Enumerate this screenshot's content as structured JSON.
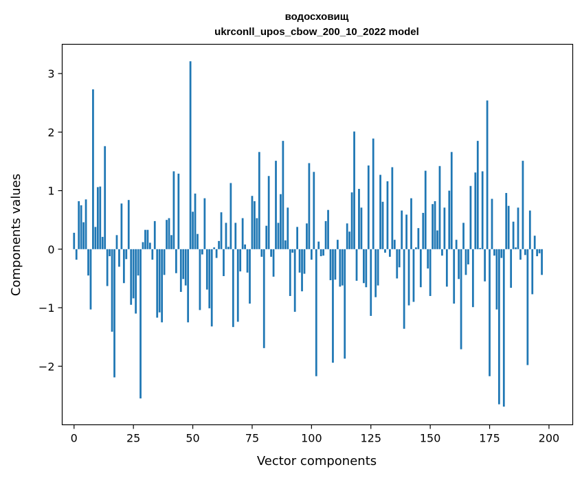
{
  "chart_data": {
    "type": "bar",
    "title_line1": "водосховищ",
    "title_line2": "ukrconll_upos_cbow_200_10_2022 model",
    "xlabel": "Vector components",
    "ylabel": "Components values",
    "xlim": [
      -5,
      210
    ],
    "ylim": [
      -3.0,
      3.5
    ],
    "xticks": [
      0,
      25,
      50,
      75,
      100,
      125,
      150,
      175,
      200
    ],
    "yticks": [
      -2,
      -1,
      0,
      1,
      2,
      3
    ],
    "bar_color": "#1f77b4",
    "values": [
      0.28,
      -0.18,
      0.82,
      0.75,
      0.46,
      0.85,
      -0.45,
      -1.03,
      2.73,
      0.38,
      1.06,
      1.07,
      0.21,
      1.76,
      -0.63,
      -0.12,
      -1.41,
      -2.19,
      0.24,
      -0.3,
      0.78,
      -0.58,
      -0.17,
      0.84,
      -0.95,
      -0.84,
      -1.1,
      -0.45,
      -2.55,
      0.12,
      0.33,
      0.33,
      0.11,
      -0.18,
      0.48,
      -1.17,
      -1.08,
      -1.25,
      -0.44,
      0.5,
      0.53,
      0.24,
      1.33,
      -0.41,
      1.29,
      -0.73,
      -0.51,
      -0.62,
      -1.25,
      3.21,
      0.64,
      0.95,
      0.26,
      -1.04,
      -0.09,
      0.87,
      -0.69,
      -1.01,
      -1.32,
      0.03,
      -0.15,
      0.14,
      0.63,
      -0.46,
      0.45,
      0.04,
      1.13,
      -1.33,
      0.45,
      -1.24,
      -0.38,
      0.53,
      0.08,
      -0.4,
      -0.93,
      0.91,
      0.82,
      0.53,
      1.66,
      -0.13,
      -1.69,
      0.4,
      1.25,
      -0.13,
      -0.47,
      1.51,
      0.45,
      0.94,
      1.85,
      0.15,
      0.71,
      -0.8,
      -0.06,
      -1.07,
      0.38,
      -0.4,
      -0.72,
      -0.42,
      0.44,
      1.47,
      -0.18,
      1.32,
      -2.17,
      0.13,
      -0.12,
      -0.11,
      0.48,
      0.67,
      -0.53,
      -1.94,
      -0.52,
      0.16,
      -0.64,
      -0.62,
      -1.87,
      0.44,
      0.3,
      0.97,
      2.01,
      -0.54,
      1.03,
      0.71,
      -0.58,
      -0.65,
      1.43,
      -1.14,
      1.89,
      -0.82,
      -0.62,
      1.27,
      0.81,
      -0.06,
      1.16,
      -0.13,
      1.4,
      0.16,
      -0.5,
      -0.31,
      0.66,
      -1.36,
      0.59,
      -0.96,
      0.87,
      -0.9,
      0.03,
      0.36,
      -0.65,
      0.62,
      1.34,
      -0.33,
      -0.8,
      0.77,
      0.82,
      0.32,
      1.42,
      -0.11,
      0.71,
      -0.64,
      1.0,
      1.66,
      -0.93,
      0.16,
      -0.51,
      -1.71,
      0.45,
      -0.44,
      -0.26,
      1.08,
      -0.99,
      1.31,
      1.85,
      0.02,
      1.33,
      -0.55,
      2.54,
      -2.17,
      0.86,
      -0.11,
      -1.03,
      -2.65,
      -0.15,
      -2.69,
      0.96,
      0.74,
      -0.66,
      0.47,
      0.03,
      0.71,
      -0.18,
      1.51,
      -0.1,
      -1.98,
      0.66,
      -0.77,
      0.23,
      -0.12,
      -0.07,
      -0.44
    ]
  }
}
